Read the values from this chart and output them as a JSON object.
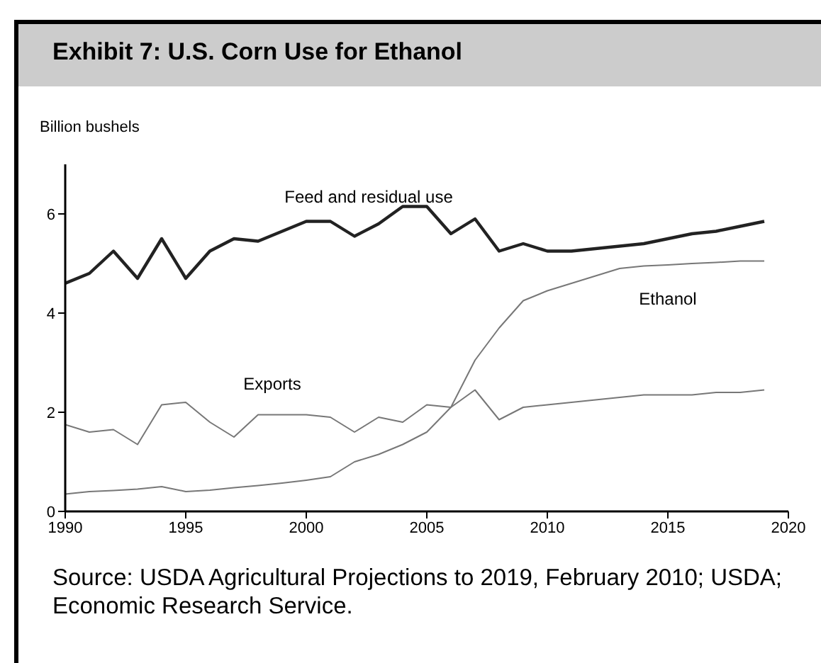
{
  "chart_data": {
    "type": "line",
    "title": "Exhibit 7: U.S. Corn Use for Ethanol",
    "ylabel": "Billion bushels",
    "annotations": [
      "Source: USDA Agricultural Projections to 2019, February 2010; USDA; Economic Research Service."
    ],
    "x": [
      1990,
      1991,
      1992,
      1993,
      1994,
      1995,
      1996,
      1997,
      1998,
      1999,
      2000,
      2001,
      2002,
      2003,
      2004,
      2005,
      2006,
      2007,
      2008,
      2009,
      2010,
      2011,
      2012,
      2013,
      2014,
      2015,
      2016,
      2017,
      2018,
      2019
    ],
    "series": [
      {
        "name": "Feed and residual use",
        "color": "#222222",
        "values": [
          4.6,
          4.8,
          5.25,
          4.7,
          5.5,
          4.7,
          5.25,
          5.5,
          5.45,
          5.65,
          5.85,
          5.85,
          5.55,
          5.8,
          6.15,
          6.15,
          5.6,
          5.9,
          5.25,
          5.4,
          5.25,
          5.25,
          5.3,
          5.35,
          5.4,
          5.5,
          5.6,
          5.65,
          5.75,
          5.85
        ]
      },
      {
        "name": "Exports",
        "color": "#777777",
        "values": [
          1.75,
          1.6,
          1.65,
          1.35,
          2.15,
          2.2,
          1.8,
          1.5,
          1.95,
          1.95,
          1.95,
          1.9,
          1.6,
          1.9,
          1.8,
          2.15,
          2.1,
          2.45,
          1.85,
          2.1,
          2.15,
          2.2,
          2.25,
          2.3,
          2.35,
          2.35,
          2.35,
          2.4,
          2.4,
          2.45
        ]
      },
      {
        "name": "Ethanol",
        "color": "#777777",
        "values": [
          0.35,
          0.4,
          0.42,
          0.45,
          0.5,
          0.4,
          0.43,
          0.48,
          0.52,
          0.57,
          0.63,
          0.7,
          1.0,
          1.15,
          1.35,
          1.6,
          2.1,
          3.05,
          3.7,
          4.25,
          4.45,
          4.6,
          4.75,
          4.9,
          4.95,
          4.97,
          5.0,
          5.02,
          5.05,
          5.05
        ]
      }
    ],
    "xlim": [
      1990,
      2020
    ],
    "xticks": [
      1990,
      1995,
      2000,
      2005,
      2010,
      2015,
      2020
    ],
    "ylim": [
      0,
      7
    ],
    "yticks": [
      0,
      2,
      4,
      6
    ],
    "grid": false,
    "legend": false,
    "marker": "none",
    "line_style": "solid"
  }
}
